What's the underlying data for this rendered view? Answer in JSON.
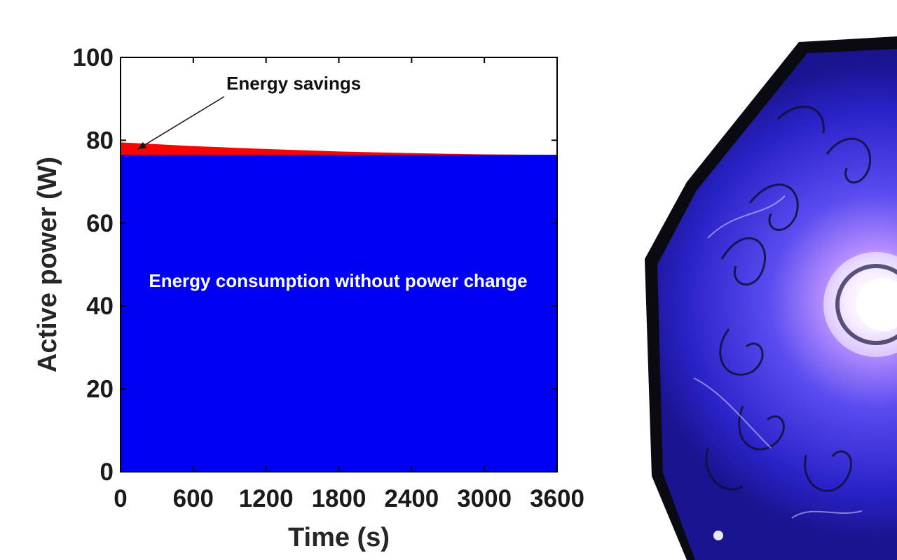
{
  "chart_data": {
    "type": "area",
    "xlabel": "Time (s)",
    "ylabel": "Active power (W)",
    "xlim": [
      0,
      3600
    ],
    "ylim": [
      0,
      100
    ],
    "xticks": [
      0,
      600,
      1200,
      1800,
      2400,
      3000,
      3600
    ],
    "yticks": [
      0,
      20,
      40,
      60,
      80,
      100
    ],
    "grid": false,
    "x": [
      0,
      600,
      1200,
      1800,
      2400,
      3000,
      3600
    ],
    "series": [
      {
        "name": "Energy consumption without power change",
        "values": [
          76.5,
          76.5,
          76.5,
          76.5,
          76.5,
          76.5,
          76.5
        ],
        "color": "#0000f5"
      },
      {
        "name": "Energy savings",
        "values": [
          79.5,
          78.6,
          77.9,
          77.3,
          76.9,
          76.6,
          76.5
        ],
        "color": "#ff0000"
      }
    ],
    "annotations": [
      {
        "text": "Energy savings",
        "x": 150,
        "y": 78
      },
      {
        "text": "Energy consumption without power change"
      }
    ]
  },
  "colors": {
    "consumption": "#0000f5",
    "savings": "#ff0000",
    "art_glow": "#5a4cf0"
  },
  "illustration": {
    "icon": "glowing-blue-lamp-artwork"
  }
}
